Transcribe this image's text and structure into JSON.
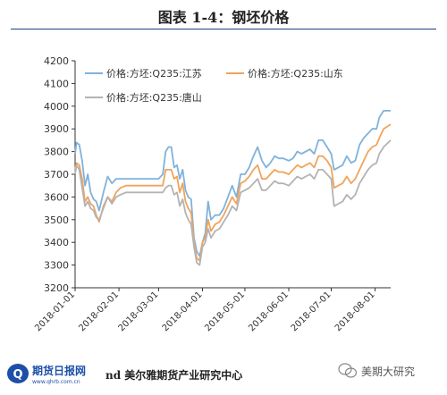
{
  "header": {
    "title": "图表 1-4：钢坯价格"
  },
  "footer": {
    "logo_text": "期货日报网",
    "logo_url_text": "www.qhrb.com.cn",
    "source_text": "nd  美尔雅期货产业研究中心",
    "wechat_label": "美期大研究"
  },
  "colors": {
    "jiangsu": "#7fb2dc",
    "shandong": "#f0a45c",
    "tangshan": "#b3b3b3"
  },
  "chart_data": {
    "type": "line",
    "title": "",
    "xlabel": "",
    "ylabel": "",
    "ylim": [
      3200,
      4200
    ],
    "yticks": [
      3200,
      3300,
      3400,
      3500,
      3600,
      3700,
      3800,
      3900,
      4000,
      4100,
      4200
    ],
    "x_range": [
      "2018-01-01",
      "2018-08-12"
    ],
    "x_ticks": [
      "2018-01-01",
      "2018-02-01",
      "2018-03-01",
      "2018-04-01",
      "2018-05-01",
      "2018-06-01",
      "2018-07-01",
      "2018-08-01"
    ],
    "legend": "top-left",
    "grid": false,
    "series": [
      {
        "name": "价格:方坯:Q235:江苏",
        "color": "#7fb2dc",
        "points": [
          [
            "2018-01-01",
            3790
          ],
          [
            "2018-01-02",
            3840
          ],
          [
            "2018-01-04",
            3830
          ],
          [
            "2018-01-06",
            3760
          ],
          [
            "2018-01-08",
            3650
          ],
          [
            "2018-01-10",
            3700
          ],
          [
            "2018-01-12",
            3620
          ],
          [
            "2018-01-14",
            3590
          ],
          [
            "2018-01-16",
            3580
          ],
          [
            "2018-01-18",
            3540
          ],
          [
            "2018-01-21",
            3620
          ],
          [
            "2018-01-24",
            3690
          ],
          [
            "2018-01-27",
            3660
          ],
          [
            "2018-01-30",
            3680
          ],
          [
            "2018-02-02",
            3680
          ],
          [
            "2018-02-06",
            3680
          ],
          [
            "2018-02-10",
            3680
          ],
          [
            "2018-02-18",
            3680
          ],
          [
            "2018-02-24",
            3680
          ],
          [
            "2018-03-01",
            3680
          ],
          [
            "2018-03-04",
            3700
          ],
          [
            "2018-03-06",
            3800
          ],
          [
            "2018-03-08",
            3820
          ],
          [
            "2018-03-10",
            3820
          ],
          [
            "2018-03-12",
            3730
          ],
          [
            "2018-03-14",
            3740
          ],
          [
            "2018-03-16",
            3680
          ],
          [
            "2018-03-18",
            3720
          ],
          [
            "2018-03-20",
            3630
          ],
          [
            "2018-03-22",
            3600
          ],
          [
            "2018-03-24",
            3590
          ],
          [
            "2018-03-26",
            3420
          ],
          [
            "2018-03-28",
            3360
          ],
          [
            "2018-03-30",
            3340
          ],
          [
            "2018-04-01",
            3400
          ],
          [
            "2018-04-03",
            3440
          ],
          [
            "2018-04-05",
            3580
          ],
          [
            "2018-04-07",
            3500
          ],
          [
            "2018-04-10",
            3520
          ],
          [
            "2018-04-13",
            3520
          ],
          [
            "2018-04-16",
            3550
          ],
          [
            "2018-04-19",
            3600
          ],
          [
            "2018-04-22",
            3650
          ],
          [
            "2018-04-25",
            3600
          ],
          [
            "2018-04-28",
            3700
          ],
          [
            "2018-05-01",
            3700
          ],
          [
            "2018-05-04",
            3730
          ],
          [
            "2018-05-07",
            3780
          ],
          [
            "2018-05-10",
            3820
          ],
          [
            "2018-05-13",
            3760
          ],
          [
            "2018-05-16",
            3730
          ],
          [
            "2018-05-19",
            3750
          ],
          [
            "2018-05-22",
            3780
          ],
          [
            "2018-05-25",
            3770
          ],
          [
            "2018-05-28",
            3770
          ],
          [
            "2018-06-01",
            3760
          ],
          [
            "2018-06-04",
            3770
          ],
          [
            "2018-06-07",
            3800
          ],
          [
            "2018-06-10",
            3790
          ],
          [
            "2018-06-13",
            3800
          ],
          [
            "2018-06-16",
            3810
          ],
          [
            "2018-06-19",
            3790
          ],
          [
            "2018-06-22",
            3850
          ],
          [
            "2018-06-25",
            3850
          ],
          [
            "2018-06-28",
            3820
          ],
          [
            "2018-07-01",
            3790
          ],
          [
            "2018-07-03",
            3720
          ],
          [
            "2018-07-06",
            3730
          ],
          [
            "2018-07-09",
            3740
          ],
          [
            "2018-07-12",
            3780
          ],
          [
            "2018-07-15",
            3750
          ],
          [
            "2018-07-18",
            3760
          ],
          [
            "2018-07-21",
            3830
          ],
          [
            "2018-07-24",
            3860
          ],
          [
            "2018-07-27",
            3880
          ],
          [
            "2018-07-30",
            3900
          ],
          [
            "2018-08-02",
            3900
          ],
          [
            "2018-08-04",
            3950
          ],
          [
            "2018-08-07",
            3980
          ],
          [
            "2018-08-12",
            3980
          ]
        ]
      },
      {
        "name": "价格:方坯:Q235:山东",
        "color": "#f0a45c",
        "points": [
          [
            "2018-01-01",
            3720
          ],
          [
            "2018-01-02",
            3750
          ],
          [
            "2018-01-04",
            3740
          ],
          [
            "2018-01-06",
            3680
          ],
          [
            "2018-01-08",
            3580
          ],
          [
            "2018-01-10",
            3600
          ],
          [
            "2018-01-12",
            3570
          ],
          [
            "2018-01-14",
            3560
          ],
          [
            "2018-01-16",
            3520
          ],
          [
            "2018-01-18",
            3490
          ],
          [
            "2018-01-21",
            3560
          ],
          [
            "2018-01-24",
            3600
          ],
          [
            "2018-01-27",
            3580
          ],
          [
            "2018-01-30",
            3620
          ],
          [
            "2018-02-02",
            3640
          ],
          [
            "2018-02-06",
            3650
          ],
          [
            "2018-02-10",
            3650
          ],
          [
            "2018-02-18",
            3650
          ],
          [
            "2018-02-24",
            3650
          ],
          [
            "2018-03-01",
            3650
          ],
          [
            "2018-03-04",
            3650
          ],
          [
            "2018-03-06",
            3720
          ],
          [
            "2018-03-08",
            3720
          ],
          [
            "2018-03-10",
            3720
          ],
          [
            "2018-03-12",
            3680
          ],
          [
            "2018-03-14",
            3690
          ],
          [
            "2018-03-16",
            3620
          ],
          [
            "2018-03-18",
            3660
          ],
          [
            "2018-03-20",
            3580
          ],
          [
            "2018-03-22",
            3550
          ],
          [
            "2018-03-24",
            3530
          ],
          [
            "2018-03-26",
            3400
          ],
          [
            "2018-03-28",
            3330
          ],
          [
            "2018-03-30",
            3320
          ],
          [
            "2018-04-01",
            3400
          ],
          [
            "2018-04-03",
            3420
          ],
          [
            "2018-04-05",
            3500
          ],
          [
            "2018-04-07",
            3450
          ],
          [
            "2018-04-10",
            3480
          ],
          [
            "2018-04-13",
            3490
          ],
          [
            "2018-04-16",
            3520
          ],
          [
            "2018-04-19",
            3560
          ],
          [
            "2018-04-22",
            3600
          ],
          [
            "2018-04-25",
            3570
          ],
          [
            "2018-04-28",
            3660
          ],
          [
            "2018-05-01",
            3670
          ],
          [
            "2018-05-04",
            3690
          ],
          [
            "2018-05-07",
            3720
          ],
          [
            "2018-05-10",
            3740
          ],
          [
            "2018-05-13",
            3680
          ],
          [
            "2018-05-16",
            3680
          ],
          [
            "2018-05-19",
            3700
          ],
          [
            "2018-05-22",
            3720
          ],
          [
            "2018-05-25",
            3710
          ],
          [
            "2018-05-28",
            3710
          ],
          [
            "2018-06-01",
            3700
          ],
          [
            "2018-06-04",
            3720
          ],
          [
            "2018-06-07",
            3740
          ],
          [
            "2018-06-10",
            3730
          ],
          [
            "2018-06-13",
            3740
          ],
          [
            "2018-06-16",
            3750
          ],
          [
            "2018-06-19",
            3730
          ],
          [
            "2018-06-22",
            3780
          ],
          [
            "2018-06-25",
            3780
          ],
          [
            "2018-06-28",
            3760
          ],
          [
            "2018-07-01",
            3730
          ],
          [
            "2018-07-03",
            3640
          ],
          [
            "2018-07-06",
            3650
          ],
          [
            "2018-07-09",
            3660
          ],
          [
            "2018-07-12",
            3690
          ],
          [
            "2018-07-15",
            3660
          ],
          [
            "2018-07-18",
            3680
          ],
          [
            "2018-07-21",
            3720
          ],
          [
            "2018-07-24",
            3760
          ],
          [
            "2018-07-27",
            3800
          ],
          [
            "2018-07-30",
            3820
          ],
          [
            "2018-08-02",
            3830
          ],
          [
            "2018-08-04",
            3860
          ],
          [
            "2018-08-07",
            3900
          ],
          [
            "2018-08-12",
            3920
          ]
        ]
      },
      {
        "name": "价格:方坯:Q235:唐山",
        "color": "#b3b3b3",
        "points": [
          [
            "2018-01-01",
            3700
          ],
          [
            "2018-01-02",
            3740
          ],
          [
            "2018-01-04",
            3720
          ],
          [
            "2018-01-06",
            3640
          ],
          [
            "2018-01-08",
            3560
          ],
          [
            "2018-01-10",
            3580
          ],
          [
            "2018-01-12",
            3550
          ],
          [
            "2018-01-14",
            3540
          ],
          [
            "2018-01-16",
            3510
          ],
          [
            "2018-01-18",
            3500
          ],
          [
            "2018-01-21",
            3550
          ],
          [
            "2018-01-24",
            3600
          ],
          [
            "2018-01-27",
            3570
          ],
          [
            "2018-01-30",
            3600
          ],
          [
            "2018-02-02",
            3610
          ],
          [
            "2018-02-06",
            3620
          ],
          [
            "2018-02-10",
            3620
          ],
          [
            "2018-02-18",
            3620
          ],
          [
            "2018-02-24",
            3620
          ],
          [
            "2018-03-01",
            3620
          ],
          [
            "2018-03-04",
            3620
          ],
          [
            "2018-03-06",
            3640
          ],
          [
            "2018-03-08",
            3650
          ],
          [
            "2018-03-10",
            3650
          ],
          [
            "2018-03-12",
            3610
          ],
          [
            "2018-03-14",
            3620
          ],
          [
            "2018-03-16",
            3560
          ],
          [
            "2018-03-18",
            3590
          ],
          [
            "2018-03-20",
            3530
          ],
          [
            "2018-03-22",
            3500
          ],
          [
            "2018-03-24",
            3480
          ],
          [
            "2018-03-26",
            3380
          ],
          [
            "2018-03-28",
            3310
          ],
          [
            "2018-03-30",
            3300
          ],
          [
            "2018-04-01",
            3380
          ],
          [
            "2018-04-03",
            3400
          ],
          [
            "2018-04-05",
            3460
          ],
          [
            "2018-04-07",
            3420
          ],
          [
            "2018-04-10",
            3450
          ],
          [
            "2018-04-13",
            3460
          ],
          [
            "2018-04-16",
            3490
          ],
          [
            "2018-04-19",
            3520
          ],
          [
            "2018-04-22",
            3560
          ],
          [
            "2018-04-25",
            3540
          ],
          [
            "2018-04-28",
            3620
          ],
          [
            "2018-05-01",
            3630
          ],
          [
            "2018-05-04",
            3640
          ],
          [
            "2018-05-07",
            3660
          ],
          [
            "2018-05-10",
            3680
          ],
          [
            "2018-05-13",
            3630
          ],
          [
            "2018-05-16",
            3630
          ],
          [
            "2018-05-19",
            3650
          ],
          [
            "2018-05-22",
            3670
          ],
          [
            "2018-05-25",
            3660
          ],
          [
            "2018-05-28",
            3660
          ],
          [
            "2018-06-01",
            3650
          ],
          [
            "2018-06-04",
            3670
          ],
          [
            "2018-06-07",
            3690
          ],
          [
            "2018-06-10",
            3680
          ],
          [
            "2018-06-13",
            3690
          ],
          [
            "2018-06-16",
            3700
          ],
          [
            "2018-06-19",
            3680
          ],
          [
            "2018-06-22",
            3720
          ],
          [
            "2018-06-25",
            3720
          ],
          [
            "2018-06-28",
            3700
          ],
          [
            "2018-07-01",
            3680
          ],
          [
            "2018-07-03",
            3560
          ],
          [
            "2018-07-06",
            3570
          ],
          [
            "2018-07-09",
            3580
          ],
          [
            "2018-07-12",
            3610
          ],
          [
            "2018-07-15",
            3590
          ],
          [
            "2018-07-18",
            3610
          ],
          [
            "2018-07-21",
            3660
          ],
          [
            "2018-07-24",
            3690
          ],
          [
            "2018-07-27",
            3720
          ],
          [
            "2018-07-30",
            3740
          ],
          [
            "2018-08-02",
            3750
          ],
          [
            "2018-08-04",
            3790
          ],
          [
            "2018-08-07",
            3820
          ],
          [
            "2018-08-12",
            3850
          ]
        ]
      }
    ]
  }
}
